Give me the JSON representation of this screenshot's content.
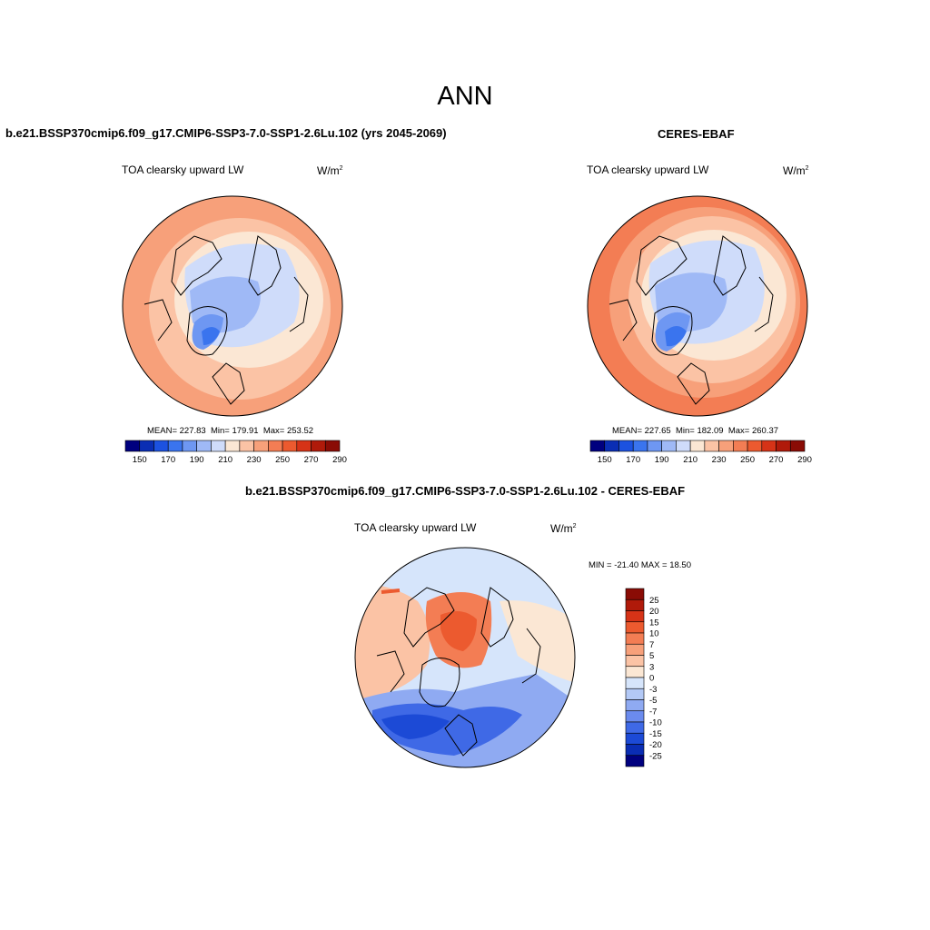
{
  "figure": {
    "season_title": "ANN",
    "units": "W/m",
    "units_sup": "2"
  },
  "panels": [
    {
      "id": "model",
      "case_title": "b.e21.BSSP370cmip6.f09_g17.CMIP6-SSP3-7.0-SSP1-2.6Lu.102 (yrs 2045-2069)",
      "variable": "TOA clearsky upward LW",
      "stats": {
        "mean_label": "MEAN=",
        "mean": "227.83",
        "min_label": "Min=",
        "min": "179.91",
        "max_label": "Max=",
        "max": "253.52"
      }
    },
    {
      "id": "obs",
      "case_title": "CERES-EBAF",
      "variable": "TOA clearsky upward LW",
      "stats": {
        "mean_label": "MEAN=",
        "mean": "227.65",
        "min_label": "Min=",
        "min": "182.09",
        "max_label": "Max=",
        "max": "260.37"
      }
    },
    {
      "id": "diff",
      "case_title": "b.e21.BSSP370cmip6.f09_g17.CMIP6-SSP3-7.0-SSP1-2.6Lu.102 - CERES-EBAF",
      "variable": "TOA clearsky upward LW",
      "minmax_text": "MIN = -21.40 MAX =  18.50"
    }
  ],
  "colorbar_abs": {
    "colors": [
      "#00007f",
      "#0a2eb4",
      "#1c52e0",
      "#3a74ee",
      "#6e97f2",
      "#9fb9f6",
      "#cfdcfa",
      "#fbe7d4",
      "#fbc3a5",
      "#f7a07a",
      "#f37d54",
      "#ec5a2f",
      "#d63317",
      "#b01a0a",
      "#8a0c05"
    ],
    "labels": [
      "150",
      "170",
      "190",
      "210",
      "230",
      "250",
      "270",
      "290"
    ]
  },
  "colorbar_diff": {
    "colors": [
      "#8a0c05",
      "#b01a0a",
      "#d63317",
      "#ec5a2f",
      "#f37d54",
      "#f7a07a",
      "#fbc3a5",
      "#fbe7d4",
      "#d6e5fb",
      "#b3c9f6",
      "#8faaf2",
      "#6b8bee",
      "#3f69e6",
      "#1c4ad6",
      "#0a2db4",
      "#00007f"
    ],
    "labels": [
      "25",
      "20",
      "15",
      "10",
      "7",
      "5",
      "3",
      "0",
      "-3",
      "-5",
      "-7",
      "-10",
      "-15",
      "-20",
      "-25"
    ]
  },
  "map_colors": {
    "warm_outer": "#f7a07a",
    "warm_mid": "#fbc3a5",
    "warm_light": "#fbe7d4",
    "cool_light": "#cfdcfa",
    "cool_mid": "#9fb9f6",
    "cool_deep": "#3a74ee",
    "diff_pos": "#f37d54",
    "diff_neg": "#1c52e0",
    "diff_neutral": "#d6e5fb"
  }
}
